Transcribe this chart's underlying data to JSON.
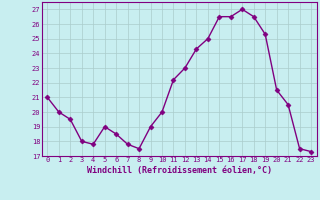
{
  "x": [
    0,
    1,
    2,
    3,
    4,
    5,
    6,
    7,
    8,
    9,
    10,
    11,
    12,
    13,
    14,
    15,
    16,
    17,
    18,
    19,
    20,
    21,
    22,
    23
  ],
  "y": [
    21.0,
    20.0,
    19.5,
    18.0,
    17.8,
    19.0,
    18.5,
    17.8,
    17.5,
    19.0,
    20.0,
    22.2,
    23.0,
    24.3,
    25.0,
    26.5,
    26.5,
    27.0,
    26.5,
    25.3,
    21.5,
    20.5,
    17.5,
    17.3
  ],
  "line_color": "#800080",
  "marker": "D",
  "marker_size": 2.5,
  "xlim": [
    -0.5,
    23.5
  ],
  "ylim": [
    17,
    27.5
  ],
  "yticks": [
    17,
    18,
    19,
    20,
    21,
    22,
    23,
    24,
    25,
    26,
    27
  ],
  "xticks": [
    0,
    1,
    2,
    3,
    4,
    5,
    6,
    7,
    8,
    9,
    10,
    11,
    12,
    13,
    14,
    15,
    16,
    17,
    18,
    19,
    20,
    21,
    22,
    23
  ],
  "xlabel": "Windchill (Refroidissement éolien,°C)",
  "bg_color": "#c8eef0",
  "grid_color": "#aacccc",
  "line_width": 1.0
}
